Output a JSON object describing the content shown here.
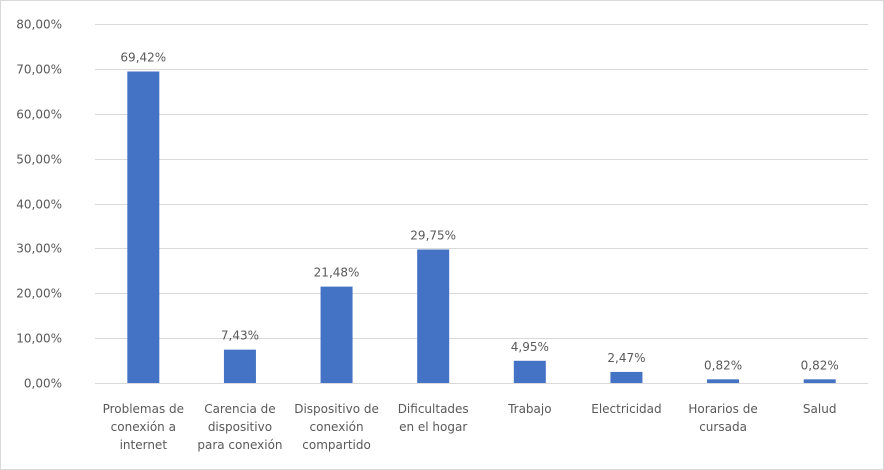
{
  "chart_data": {
    "type": "bar",
    "categories": [
      "Problemas de conexión a internet",
      "Carencia de dispositivo para conexión",
      "Dispositivo de conexión compartido",
      "Dificultades en el hogar",
      "Trabajo",
      "Electricidad",
      "Horarios de cursada",
      "Salud"
    ],
    "category_lines": [
      [
        "Problemas de",
        "conexión a",
        "internet"
      ],
      [
        "Carencia de",
        "dispositivo",
        "para conexión"
      ],
      [
        "Dispositivo de",
        "conexión",
        "compartido"
      ],
      [
        "Dificultades",
        "en el hogar"
      ],
      [
        "Trabajo"
      ],
      [
        "Electricidad"
      ],
      [
        "Horarios de",
        "cursada"
      ],
      [
        "Salud"
      ]
    ],
    "values": [
      69.42,
      7.43,
      21.48,
      29.75,
      4.95,
      2.47,
      0.82,
      0.82
    ],
    "data_labels": [
      "69,42%",
      "7,43%",
      "21,48%",
      "29,75%",
      "4,95%",
      "2,47%",
      "0,82%",
      "0,82%"
    ],
    "yticks": [
      0,
      10,
      20,
      30,
      40,
      50,
      60,
      70,
      80
    ],
    "ytick_labels": [
      "0,00%",
      "10,00%",
      "20,00%",
      "30,00%",
      "40,00%",
      "50,00%",
      "60,00%",
      "70,00%",
      "80,00%"
    ],
    "ylim": [
      0,
      80
    ],
    "grid": true,
    "bar_color": "#4472c4",
    "grid_color": "#d9d9d9",
    "title": "",
    "xlabel": "",
    "ylabel": ""
  }
}
